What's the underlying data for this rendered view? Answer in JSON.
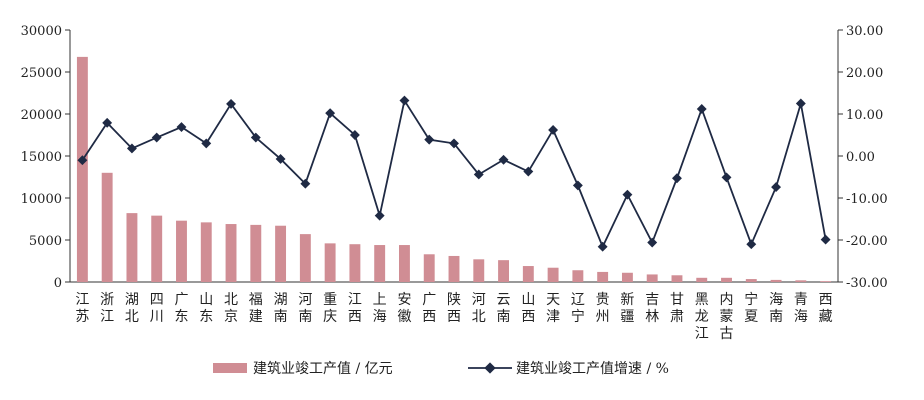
{
  "chart_data": {
    "type": "bar+line",
    "categories": [
      "江苏",
      "浙江",
      "湖北",
      "四川",
      "广东",
      "山东",
      "北京",
      "福建",
      "湖南",
      "河南",
      "重庆",
      "江西",
      "上海",
      "安徽",
      "广西",
      "陕西",
      "河北",
      "云南",
      "山西",
      "天津",
      "辽宁",
      "贵州",
      "新疆",
      "吉林",
      "甘肃",
      "黑龙江",
      "内蒙古",
      "宁夏",
      "海南",
      "青海",
      "西藏"
    ],
    "series": [
      {
        "name": "建筑业竣工产值 / 亿元",
        "type": "bar",
        "axis": "left",
        "color": "#d08d94",
        "values": [
          26800,
          13000,
          8200,
          7900,
          7300,
          7100,
          6900,
          6800,
          6700,
          5700,
          4600,
          4500,
          4400,
          4400,
          3300,
          3100,
          2700,
          2600,
          1900,
          1700,
          1400,
          1200,
          1100,
          900,
          800,
          500,
          500,
          350,
          250,
          200,
          100
        ]
      },
      {
        "name": "建筑业竣工产值增速 / %",
        "type": "line",
        "axis": "right",
        "color": "#1f2a44",
        "values": [
          -1.0,
          7.9,
          1.8,
          4.4,
          6.9,
          3.0,
          12.4,
          4.4,
          -0.7,
          -6.6,
          10.2,
          5.0,
          -14.2,
          13.2,
          3.9,
          3.0,
          -4.4,
          -0.9,
          -3.7,
          6.2,
          -7.0,
          -21.6,
          -9.2,
          -20.6,
          -5.3,
          11.2,
          -5.1,
          -21.0,
          -7.4,
          12.5,
          -19.9
        ]
      }
    ],
    "y_left": {
      "min": 0,
      "max": 30000,
      "ticks": [
        "0",
        "5000",
        "10000",
        "15000",
        "20000",
        "25000",
        "30000"
      ]
    },
    "y_right": {
      "min": -30,
      "max": 30,
      "ticks": [
        "-30.00",
        "-20.00",
        "-10.00",
        "0.00",
        "10.00",
        "20.00",
        "30.00"
      ]
    },
    "grid": false,
    "legend_position": "bottom"
  }
}
